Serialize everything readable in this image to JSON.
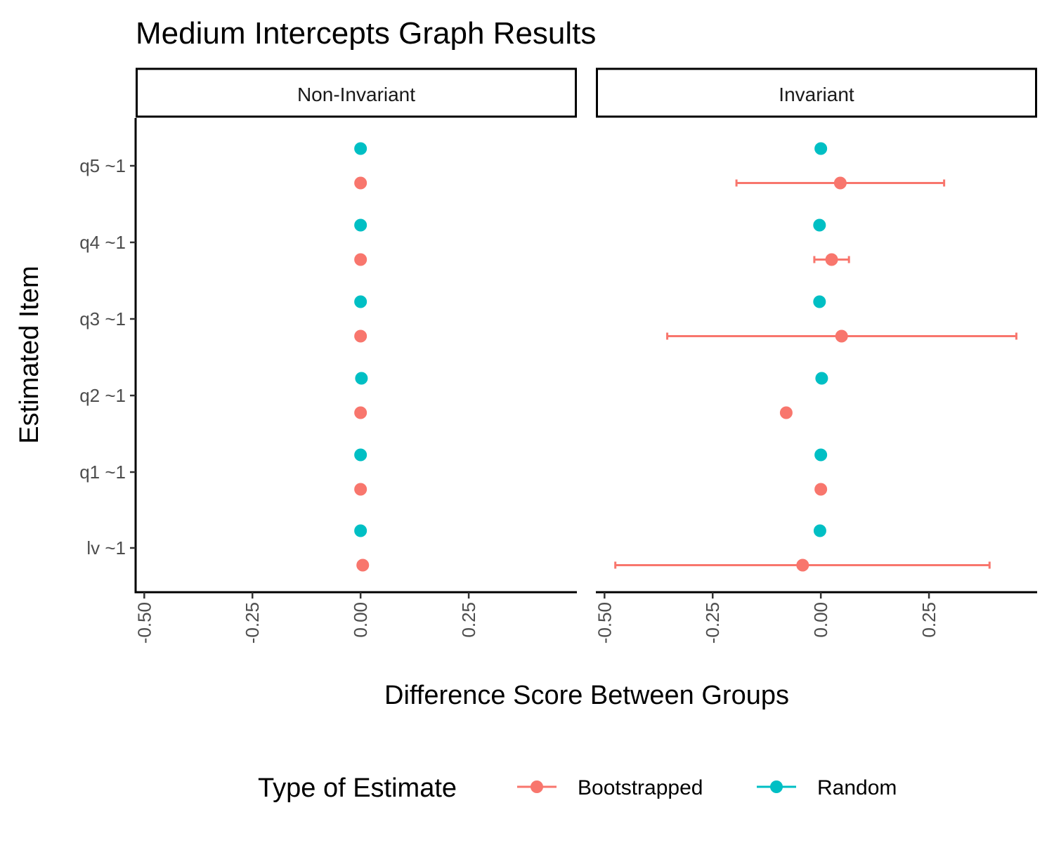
{
  "chart_data": {
    "type": "scatter",
    "title": "Medium Intercepts Graph Results",
    "xlabel": "Difference Score Between Groups",
    "ylabel": "Estimated Item",
    "xlim": [
      -0.52,
      0.5
    ],
    "x_ticks": [
      "-0.50",
      "-0.25",
      "0.00",
      "0.25"
    ],
    "x_tick_values": [
      -0.5,
      -0.25,
      0.0,
      0.25
    ],
    "categories": [
      "q5 ~1",
      "q4 ~1",
      "q3 ~1",
      "q2 ~1",
      "q1 ~1",
      "lv ~1"
    ],
    "grid": false,
    "legend": {
      "title": "Type of Estimate",
      "position": "bottom",
      "items": [
        {
          "name": "Bootstrapped",
          "color": "#F8766D"
        },
        {
          "name": "Random",
          "color": "#00BFC4"
        }
      ]
    },
    "panels": [
      {
        "label": "Non-Invariant",
        "series": [
          {
            "name": "Bootstrapped",
            "color": "#F8766D",
            "points": [
              {
                "y": "q5 ~1",
                "x": 0.0
              },
              {
                "y": "q4 ~1",
                "x": 0.0
              },
              {
                "y": "q3 ~1",
                "x": 0.0
              },
              {
                "y": "q2 ~1",
                "x": 0.0
              },
              {
                "y": "q1 ~1",
                "x": 0.0
              },
              {
                "y": "lv ~1",
                "x": 0.005
              }
            ]
          },
          {
            "name": "Random",
            "color": "#00BFC4",
            "points": [
              {
                "y": "q5 ~1",
                "x": 0.0
              },
              {
                "y": "q4 ~1",
                "x": 0.0
              },
              {
                "y": "q3 ~1",
                "x": 0.0
              },
              {
                "y": "q2 ~1",
                "x": 0.002
              },
              {
                "y": "q1 ~1",
                "x": 0.0
              },
              {
                "y": "lv ~1",
                "x": 0.0
              }
            ]
          }
        ]
      },
      {
        "label": "Invariant",
        "series": [
          {
            "name": "Bootstrapped",
            "color": "#F8766D",
            "points": [
              {
                "y": "q5 ~1",
                "x": 0.045,
                "lo": -0.195,
                "hi": 0.285
              },
              {
                "y": "q4 ~1",
                "x": 0.025,
                "lo": -0.015,
                "hi": 0.065
              },
              {
                "y": "q3 ~1",
                "x": 0.048,
                "lo": -0.355,
                "hi": 0.452
              },
              {
                "y": "q2 ~1",
                "x": -0.08
              },
              {
                "y": "q1 ~1",
                "x": 0.0
              },
              {
                "y": "lv ~1",
                "x": -0.042,
                "lo": -0.475,
                "hi": 0.39
              }
            ]
          },
          {
            "name": "Random",
            "color": "#00BFC4",
            "points": [
              {
                "y": "q5 ~1",
                "x": 0.0
              },
              {
                "y": "q4 ~1",
                "x": -0.003
              },
              {
                "y": "q3 ~1",
                "x": -0.003
              },
              {
                "y": "q2 ~1",
                "x": 0.002
              },
              {
                "y": "q1 ~1",
                "x": 0.0
              },
              {
                "y": "lv ~1",
                "x": -0.002
              }
            ]
          }
        ]
      }
    ]
  }
}
